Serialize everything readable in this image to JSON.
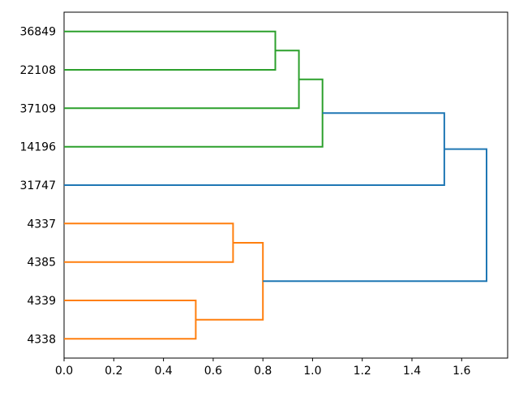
{
  "chart_data": {
    "type": "dendrogram",
    "orientation": "right",
    "title": "",
    "xlabel": "",
    "ylabel": "",
    "leaves": [
      "36849",
      "22108",
      "37109",
      "14196",
      "31747",
      "4337",
      "4385",
      "4339",
      "4338"
    ],
    "merges": [
      {
        "id": "green-1",
        "children": [
          "36849",
          "22108"
        ],
        "distance": 0.85,
        "color": "green"
      },
      {
        "id": "green-2",
        "children": [
          "green-1",
          "37109"
        ],
        "distance": 0.945,
        "color": "green"
      },
      {
        "id": "green-3",
        "children": [
          "green-2",
          "14196"
        ],
        "distance": 1.04,
        "color": "green"
      },
      {
        "id": "orange-1",
        "children": [
          "4337",
          "4385"
        ],
        "distance": 0.68,
        "color": "orange"
      },
      {
        "id": "orange-2",
        "children": [
          "4339",
          "4338"
        ],
        "distance": 0.53,
        "color": "orange"
      },
      {
        "id": "orange-3",
        "children": [
          "orange-1",
          "orange-2"
        ],
        "distance": 0.8,
        "color": "orange"
      },
      {
        "id": "blue-1",
        "children": [
          "green-3",
          "31747"
        ],
        "distance": 1.53,
        "color": "blue"
      },
      {
        "id": "blue-root",
        "children": [
          "blue-1",
          "orange-3"
        ],
        "distance": 1.7,
        "color": "blue"
      }
    ],
    "x_ticks": [
      "0.0",
      "0.2",
      "0.4",
      "0.6",
      "0.8",
      "1.0",
      "1.2",
      "1.4",
      "1.6"
    ],
    "xlim": [
      0,
      1.785
    ],
    "ylim": [
      0,
      90
    ],
    "grid": false,
    "legend": null,
    "colors": {
      "green": "#2ca02c",
      "orange": "#ff7f0e",
      "blue": "#1f77b4",
      "axis": "#000000",
      "text": "#000000",
      "background": "#ffffff"
    }
  }
}
